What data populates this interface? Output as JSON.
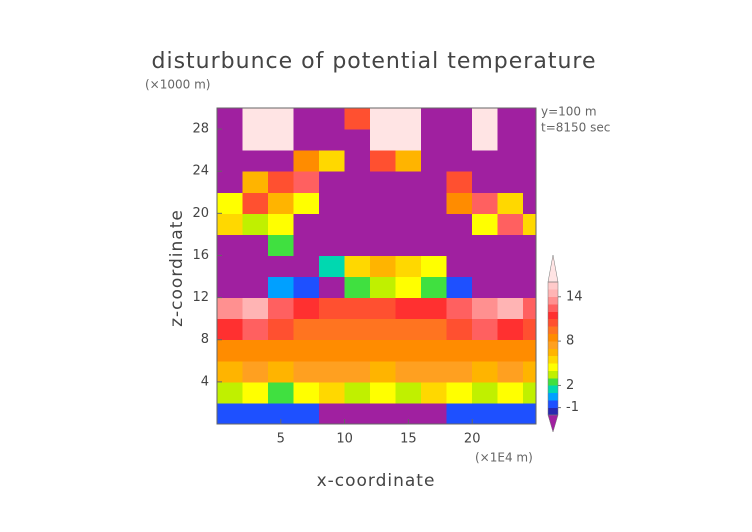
{
  "chart_data": {
    "type": "contour",
    "title": "disturbunce of potential temperature",
    "y_unit": "(×1000 m)",
    "x_unit": "(×1E4 m)",
    "annotations": [
      "y=100 m",
      "t=8150 sec"
    ],
    "xlabel": "x-coordinate",
    "ylabel": "z-coordinate",
    "xlim": [
      0,
      25
    ],
    "ylim": [
      0,
      30
    ],
    "xticks": [
      5,
      10,
      15,
      20
    ],
    "yticks": [
      4,
      8,
      12,
      16,
      20,
      24,
      28
    ],
    "x": [
      1,
      3,
      5,
      7,
      9,
      11,
      13,
      15,
      17,
      19,
      21,
      23,
      25
    ],
    "y": [
      1,
      3,
      5,
      7,
      9,
      11,
      13,
      15,
      17,
      19,
      21,
      23,
      25,
      27,
      29
    ],
    "z": [
      [
        -1,
        -1,
        -1,
        -1,
        -3,
        -3,
        -3,
        -3,
        -3,
        -1,
        -1,
        -1,
        -1
      ],
      [
        3,
        4,
        2,
        4,
        5,
        3,
        4,
        3,
        5,
        4,
        3,
        4,
        3
      ],
      [
        6,
        7,
        6,
        7,
        7,
        7,
        6,
        7,
        7,
        7,
        6,
        7,
        6
      ],
      [
        8,
        8,
        8,
        8,
        8,
        8,
        8,
        8,
        8,
        8,
        8,
        8,
        8
      ],
      [
        11,
        12,
        10,
        9,
        9,
        9,
        9,
        9,
        9,
        10,
        12,
        11,
        10
      ],
      [
        13,
        14,
        12,
        11,
        10,
        10,
        10,
        11,
        11,
        12,
        13,
        14,
        12
      ],
      [
        -3,
        -3,
        0,
        -1,
        -3,
        2,
        3,
        4,
        2,
        -1,
        -3,
        -3,
        -3
      ],
      [
        -3,
        -3,
        -3,
        -3,
        1,
        5,
        6,
        5,
        4,
        -3,
        -3,
        -3,
        -3
      ],
      [
        -3,
        -3,
        2,
        -3,
        -3,
        -3,
        -3,
        -3,
        -3,
        -3,
        -3,
        -3,
        -3
      ],
      [
        5,
        3,
        4,
        -3,
        -3,
        -3,
        -3,
        -3,
        -3,
        -3,
        4,
        12,
        5
      ],
      [
        4,
        10,
        6,
        4,
        -3,
        -3,
        -3,
        -3,
        -3,
        8,
        12,
        5,
        -3
      ],
      [
        -3,
        6,
        10,
        12,
        -3,
        -3,
        -3,
        -3,
        -3,
        10,
        -3,
        -3,
        -3
      ],
      [
        -3,
        -3,
        -3,
        8,
        5,
        -3,
        10,
        6,
        -3,
        -3,
        -3,
        -3,
        -3
      ],
      [
        -3,
        16,
        16,
        -3,
        -3,
        -3,
        16,
        16,
        -3,
        -3,
        16,
        -3,
        -3
      ],
      [
        -3,
        16,
        16,
        -3,
        -3,
        10,
        16,
        16,
        -3,
        -3,
        16,
        -3,
        -3
      ]
    ],
    "colorbar": {
      "levels": [
        -2,
        -1,
        0,
        1,
        2,
        3,
        4,
        5,
        6,
        7,
        8,
        9,
        10,
        11,
        12,
        13,
        14,
        15,
        16
      ],
      "colors": [
        "#2828b0",
        "#1e50ff",
        "#00a0ff",
        "#00d8b0",
        "#40e040",
        "#c0f000",
        "#ffff00",
        "#ffd800",
        "#ffb400",
        "#ffa020",
        "#ff8c00",
        "#ff7420",
        "#ff5030",
        "#ff3030",
        "#ff6060",
        "#ff9090",
        "#ffb4b4",
        "#ffcaca"
      ],
      "extend_colors": [
        "#a020a0",
        "#ffe4e4"
      ],
      "ticks": [
        -1,
        2,
        8,
        14
      ]
    }
  }
}
